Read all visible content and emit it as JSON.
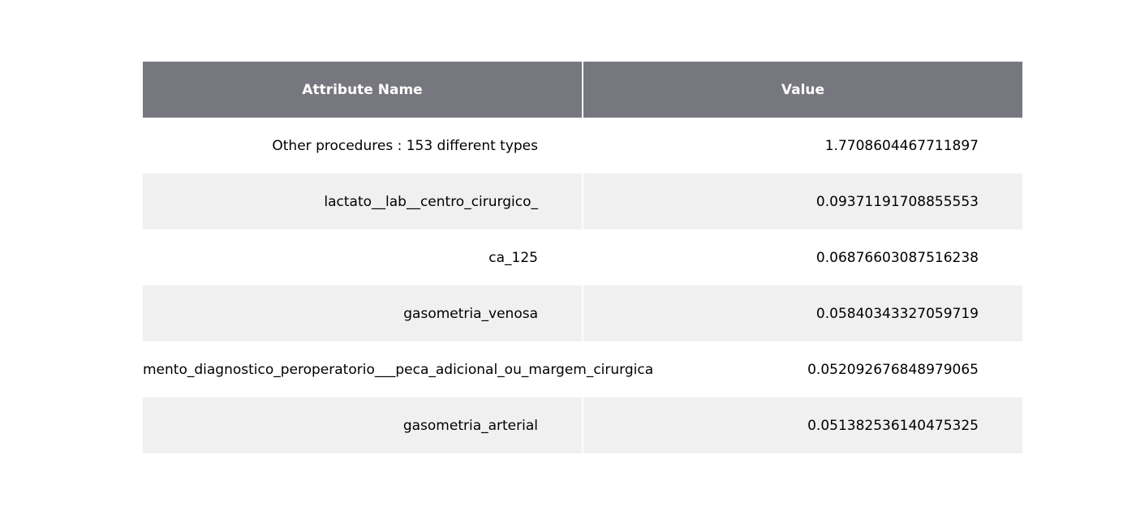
{
  "chart_data": {
    "type": "table",
    "columns": [
      "Attribute Name",
      "Value"
    ],
    "rows": [
      [
        "Other procedures : 153 different types",
        "1.7708604467711897"
      ],
      [
        "lactato__lab__centro_cirurgico_",
        "0.09371191708855553"
      ],
      [
        "ca_125",
        "0.06876603087516238"
      ],
      [
        "gasometria_venosa",
        "0.05840343327059719"
      ],
      [
        "mento_diagnostico_peroperatorio___peca_adicional_ou_margem_cirurgica",
        "0.052092676848979065"
      ],
      [
        "gasometria_arterial",
        "0.051382536140475325"
      ]
    ]
  },
  "colors": {
    "header_bg": "#77777f",
    "header_text": "#ffffff",
    "stripe": "#f0f0f0"
  }
}
